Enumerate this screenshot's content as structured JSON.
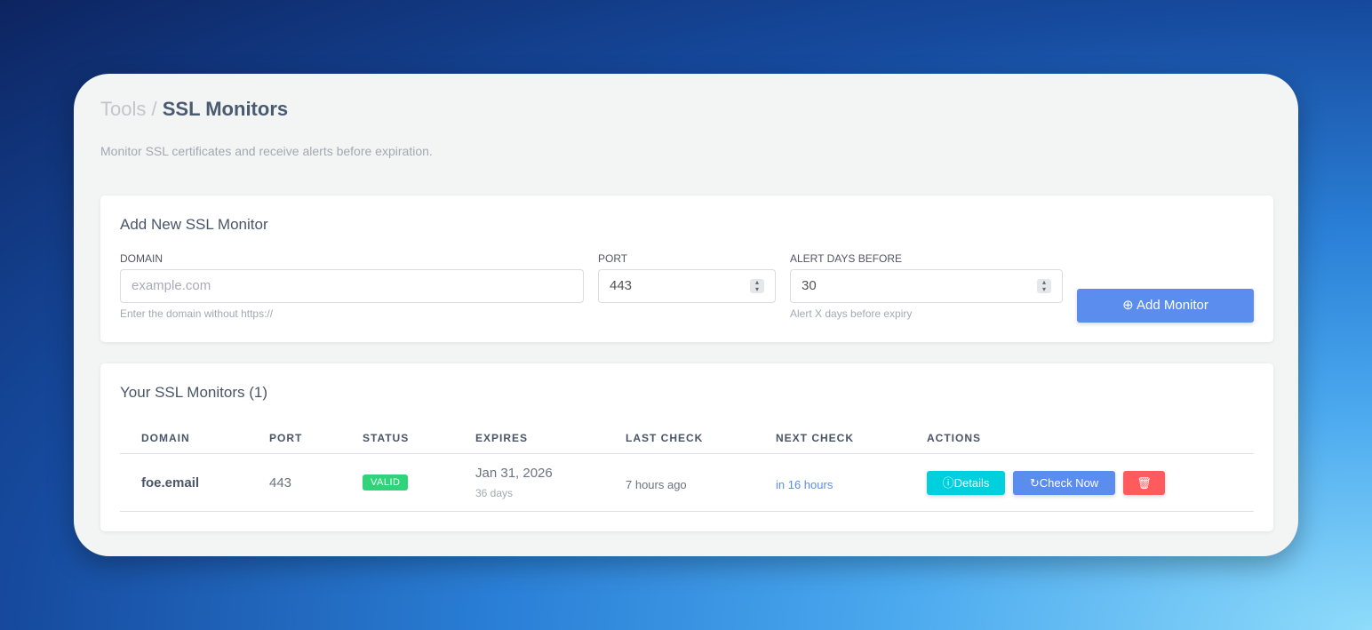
{
  "breadcrumb": {
    "parent": "Tools",
    "separator": "/",
    "current": "SSL Monitors"
  },
  "subtitle": "Monitor SSL certificates and receive alerts before expiration.",
  "add_form": {
    "title": "Add New SSL Monitor",
    "domain_label": "DOMAIN",
    "domain_placeholder": "example.com",
    "domain_help": "Enter the domain without https://",
    "port_label": "PORT",
    "port_value": "443",
    "alert_label": "ALERT DAYS BEFORE",
    "alert_value": "30",
    "alert_help": "Alert X days before expiry",
    "submit": "Add Monitor"
  },
  "monitors": {
    "title": "Your SSL Monitors (1)",
    "columns": [
      "DOMAIN",
      "PORT",
      "STATUS",
      "EXPIRES",
      "LAST CHECK",
      "NEXT CHECK",
      "ACTIONS"
    ],
    "rows": [
      {
        "domain": "foe.email",
        "port": "443",
        "status": "VALID",
        "expires": "Jan 31, 2026",
        "expires_in": "36 days",
        "last_check": "7 hours ago",
        "next_check": "in 16 hours",
        "details": "Details",
        "check_now": "Check Now"
      }
    ]
  },
  "colors": {
    "primary": "#5b8dee",
    "info": "#00cfdd",
    "danger": "#ff5b5c",
    "success": "#2fd37a"
  }
}
